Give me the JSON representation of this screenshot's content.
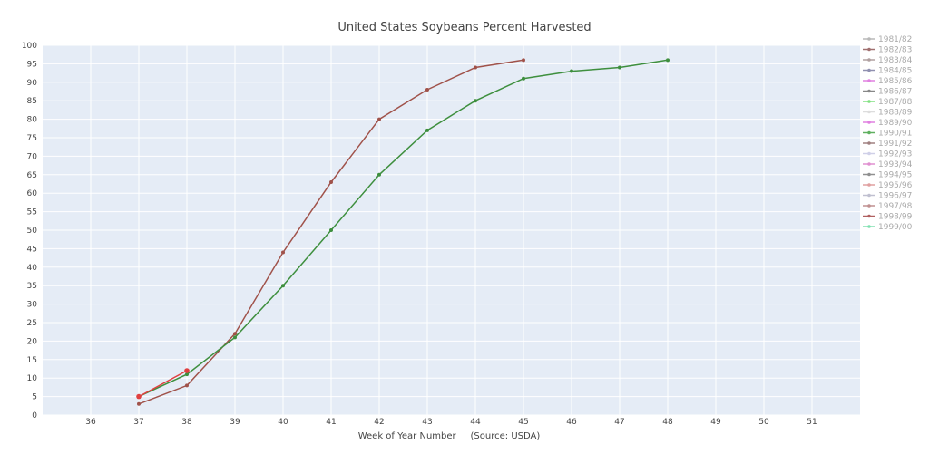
{
  "chart_data": {
    "type": "line",
    "title": "United States Soybeans Percent Harvested",
    "xlabel": "Week of Year Number     (Source: USDA)",
    "ylabel": "",
    "xlim": [
      35,
      52
    ],
    "ylim": [
      0,
      100
    ],
    "x_ticks": [
      36,
      37,
      38,
      39,
      40,
      41,
      42,
      43,
      44,
      45,
      46,
      47,
      48,
      49,
      50,
      51
    ],
    "y_ticks": [
      0,
      5,
      10,
      15,
      20,
      25,
      30,
      35,
      40,
      45,
      50,
      55,
      60,
      65,
      70,
      75,
      80,
      85,
      90,
      95,
      100
    ],
    "grid": true,
    "legend_position": "right",
    "legend": [
      {
        "label": "1981/82",
        "color": "#b8b8b8"
      },
      {
        "label": "1982/83",
        "color": "#a07070"
      },
      {
        "label": "1983/84",
        "color": "#b0a0a0"
      },
      {
        "label": "1984/85",
        "color": "#9090b0"
      },
      {
        "label": "1985/86",
        "color": "#e080e0"
      },
      {
        "label": "1986/87",
        "color": "#888888"
      },
      {
        "label": "1987/88",
        "color": "#80e080"
      },
      {
        "label": "1988/89",
        "color": "#dddddd"
      },
      {
        "label": "1989/90",
        "color": "#e080e0"
      },
      {
        "label": "1990/91",
        "color": "#60b060"
      },
      {
        "label": "1991/92",
        "color": "#a08080"
      },
      {
        "label": "1992/93",
        "color": "#d0d0e8"
      },
      {
        "label": "1993/94",
        "color": "#e090d0"
      },
      {
        "label": "1994/95",
        "color": "#909090"
      },
      {
        "label": "1995/96",
        "color": "#e0a0a0"
      },
      {
        "label": "1996/97",
        "color": "#c0c0d0"
      },
      {
        "label": "1997/98",
        "color": "#c09090"
      },
      {
        "label": "1998/99",
        "color": "#b06060"
      },
      {
        "label": "1999/00",
        "color": "#80e0b0"
      }
    ],
    "series": [
      {
        "color": "#a0524a",
        "x": [
          37,
          38,
          39,
          40,
          41,
          42,
          43,
          44,
          45
        ],
        "y": [
          3,
          8,
          22,
          44,
          63,
          80,
          88,
          94,
          96
        ]
      },
      {
        "color": "#3e8f3e",
        "x": [
          37,
          38,
          39,
          40,
          41,
          42,
          43,
          44,
          45,
          46,
          47,
          48
        ],
        "y": [
          5,
          11,
          21,
          35,
          50,
          65,
          77,
          85,
          91,
          93,
          94,
          96
        ]
      },
      {
        "color": "#e04040",
        "x": [
          37,
          38
        ],
        "y": [
          5,
          12
        ]
      }
    ]
  }
}
